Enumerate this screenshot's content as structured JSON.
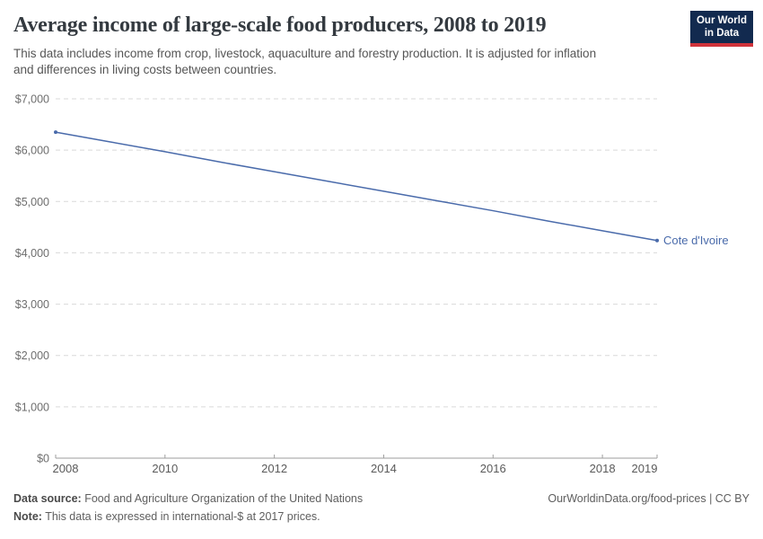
{
  "header": {
    "title": "Average income of large-scale food producers, 2008 to 2019",
    "logo": {
      "line1": "Our World",
      "line2": "in Data",
      "bg_color": "#122a4f",
      "accent_color": "#d0333b"
    }
  },
  "subtitle": "This data includes income from crop, livestock, aquaculture and forestry production. It is adjusted for inflation\nand differences in living costs between countries.",
  "chart_data": {
    "type": "line",
    "title": "Average income of large-scale food producers, 2008 to 2019",
    "x": [
      2008,
      2009,
      2010,
      2011,
      2012,
      2013,
      2014,
      2015,
      2016,
      2017,
      2018,
      2019
    ],
    "series": [
      {
        "name": "Cote d'Ivoire",
        "color": "#4a6bab",
        "values": [
          6350,
          6160,
          5970,
          5770,
          5580,
          5390,
          5200,
          5010,
          4820,
          4620,
          4430,
          4240
        ]
      }
    ],
    "xlim": [
      2008,
      2019
    ],
    "ylim": [
      0,
      7000
    ],
    "yticks": [
      {
        "value": 0,
        "label": "$0"
      },
      {
        "value": 1000,
        "label": "$1,000"
      },
      {
        "value": 2000,
        "label": "$2,000"
      },
      {
        "value": 3000,
        "label": "$3,000"
      },
      {
        "value": 4000,
        "label": "$4,000"
      },
      {
        "value": 5000,
        "label": "$5,000"
      },
      {
        "value": 6000,
        "label": "$6,000"
      },
      {
        "value": 7000,
        "label": "$7,000"
      }
    ],
    "xticks": [
      {
        "value": 2008,
        "label": "2008",
        "dx": 11
      },
      {
        "value": 2010,
        "label": "2010",
        "dx": 0
      },
      {
        "value": 2012,
        "label": "2012",
        "dx": 0
      },
      {
        "value": 2014,
        "label": "2014",
        "dx": 0
      },
      {
        "value": 2016,
        "label": "2016",
        "dx": 0
      },
      {
        "value": 2018,
        "label": "2018",
        "dx": 0
      },
      {
        "value": 2019,
        "label": "2019",
        "dx": -14
      }
    ],
    "grid": "horizontal-dashed",
    "legend": "end-of-line-label",
    "xlabel": "",
    "ylabel": "",
    "colors": {
      "gridline": "#d9d9d9",
      "axis": "#9e9e9e",
      "y_tick_label": "#6e6e6e",
      "x_tick_label": "#5a5a5a"
    },
    "layout": {
      "plot_left": 62,
      "plot_right": 732,
      "plot_top": 110,
      "plot_bottom": 510
    }
  },
  "footer": {
    "data_source_label": "Data source:",
    "data_source_text": " Food and Agriculture Organization of the United Nations",
    "note_label": "Note:",
    "note_text": " This data is expressed in international-$ at 2017 prices.",
    "link": "OurWorldinData.org/food-prices | CC BY"
  }
}
